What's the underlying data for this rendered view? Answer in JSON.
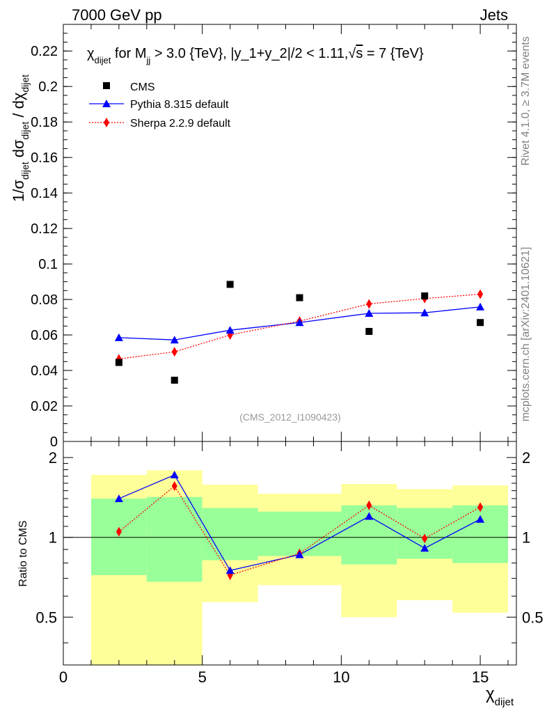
{
  "header": {
    "left": "7000 GeV pp",
    "right": "Jets"
  },
  "side_labels": {
    "rivet": "Rivet 4.1.0, ≥ 3.7M events",
    "mcplots": "mcplots.cern.ch [arXiv:2401.10621]"
  },
  "watermark": "(CMS_2012_I1090423)",
  "colors": {
    "data": "#000000",
    "pythia": "#0000ff",
    "sherpa": "#ff0000",
    "band_inner": "#99ff99",
    "band_outer": "#ffff99"
  },
  "chart_data": [
    {
      "type": "scatter",
      "panel": "main",
      "title": {
        "chi": "χ",
        "chi_sub": "dijet",
        "mid1": " for M",
        "m_sub": "jj",
        "mid2": " > 3.0 {TeV}, |y_1+y_2|/2 < 1.11,",
        "sqrt": "√",
        "s": "s",
        "end": " = 7 {TeV}"
      },
      "ylabel": {
        "p1": "1/σ",
        "p1_sub": "dijet",
        "p2": " dσ",
        "p2_sub": "dijet",
        "p3": " / dχ",
        "p3_sub": "dijet"
      },
      "xlim": [
        0,
        16.3
      ],
      "ylim": [
        0,
        0.235
      ],
      "y_ticks": [
        0,
        0.02,
        0.04,
        0.06,
        0.08,
        0.1,
        0.12,
        0.14,
        0.16,
        0.18,
        0.2,
        0.22
      ],
      "y_tick_labels": [
        "0",
        "0.02",
        "0.04",
        "0.06",
        "0.08",
        "0.1",
        "0.12",
        "0.14",
        "0.16",
        "0.18",
        "0.2",
        "0.22"
      ],
      "legend": [
        "CMS",
        "Pythia 8.315 default",
        "Sherpa 2.2.9 default"
      ],
      "legend_position": "top-left",
      "series": [
        {
          "name": "CMS",
          "marker": "square",
          "x": [
            2,
            4,
            6,
            8.5,
            11,
            13,
            15
          ],
          "values": [
            0.0445,
            0.0345,
            0.0885,
            0.081,
            0.062,
            0.082,
            0.067
          ]
        },
        {
          "name": "Pythia 8.315 default",
          "marker": "triangle",
          "line": "solid",
          "x": [
            2,
            4,
            6,
            8.5,
            11,
            13,
            15
          ],
          "values": [
            0.0585,
            0.0572,
            0.0627,
            0.067,
            0.0722,
            0.0725,
            0.0758
          ]
        },
        {
          "name": "Sherpa 2.2.9 default",
          "marker": "diamond",
          "line": "dotted",
          "x": [
            2,
            4,
            6,
            8.5,
            11,
            13,
            15
          ],
          "values": [
            0.0465,
            0.0505,
            0.06,
            0.0678,
            0.0775,
            0.0805,
            0.083
          ],
          "errors": [
            0.0015,
            0.0015,
            0.0015,
            0.0015,
            0.002,
            0.002,
            0.002
          ]
        }
      ]
    },
    {
      "type": "line",
      "panel": "ratio",
      "ylabel": "Ratio to CMS",
      "xlabel": {
        "chi": "χ",
        "sub": "dijet"
      },
      "xlim": [
        0,
        16.3
      ],
      "ylim": [
        0.33,
        2.3
      ],
      "y_ticks": [
        0.5,
        1,
        2
      ],
      "y_tick_labels": [
        "0.5",
        "1",
        "2"
      ],
      "x_ticks": [
        0,
        5,
        10,
        15
      ],
      "x_tick_labels": [
        "0",
        "5",
        "10",
        "15"
      ],
      "bins": [
        {
          "lo": 1,
          "hi": 3,
          "inner": [
            0.72,
            1.4
          ],
          "outer": [
            0.33,
            1.72
          ]
        },
        {
          "lo": 3,
          "hi": 5,
          "inner": [
            0.68,
            1.42
          ],
          "outer": [
            0.33,
            1.79
          ]
        },
        {
          "lo": 5,
          "hi": 7,
          "inner": [
            0.82,
            1.29
          ],
          "outer": [
            0.57,
            1.58
          ]
        },
        {
          "lo": 7,
          "hi": 10,
          "inner": [
            0.85,
            1.25
          ],
          "outer": [
            0.66,
            1.46
          ]
        },
        {
          "lo": 10,
          "hi": 12,
          "inner": [
            0.79,
            1.32
          ],
          "outer": [
            0.5,
            1.59
          ]
        },
        {
          "lo": 12,
          "hi": 14,
          "inner": [
            0.83,
            1.29
          ],
          "outer": [
            0.58,
            1.52
          ]
        },
        {
          "lo": 14,
          "hi": 16,
          "inner": [
            0.8,
            1.32
          ],
          "outer": [
            0.52,
            1.57
          ]
        }
      ],
      "series": [
        {
          "name": "Pythia 8.315 default",
          "marker": "triangle",
          "line": "solid",
          "x": [
            2,
            4,
            6,
            8.5,
            11,
            13,
            15
          ],
          "values": [
            1.4,
            1.72,
            0.75,
            0.86,
            1.2,
            0.91,
            1.17
          ]
        },
        {
          "name": "Sherpa 2.2.9 default",
          "marker": "diamond",
          "line": "dotted",
          "x": [
            2,
            4,
            6,
            8.5,
            11,
            13,
            15
          ],
          "values": [
            1.05,
            1.56,
            0.72,
            0.87,
            1.32,
            0.99,
            1.3
          ],
          "errors": [
            0.03,
            0.04,
            0.03,
            0.02,
            0.03,
            0.03,
            0.03
          ]
        }
      ]
    }
  ]
}
